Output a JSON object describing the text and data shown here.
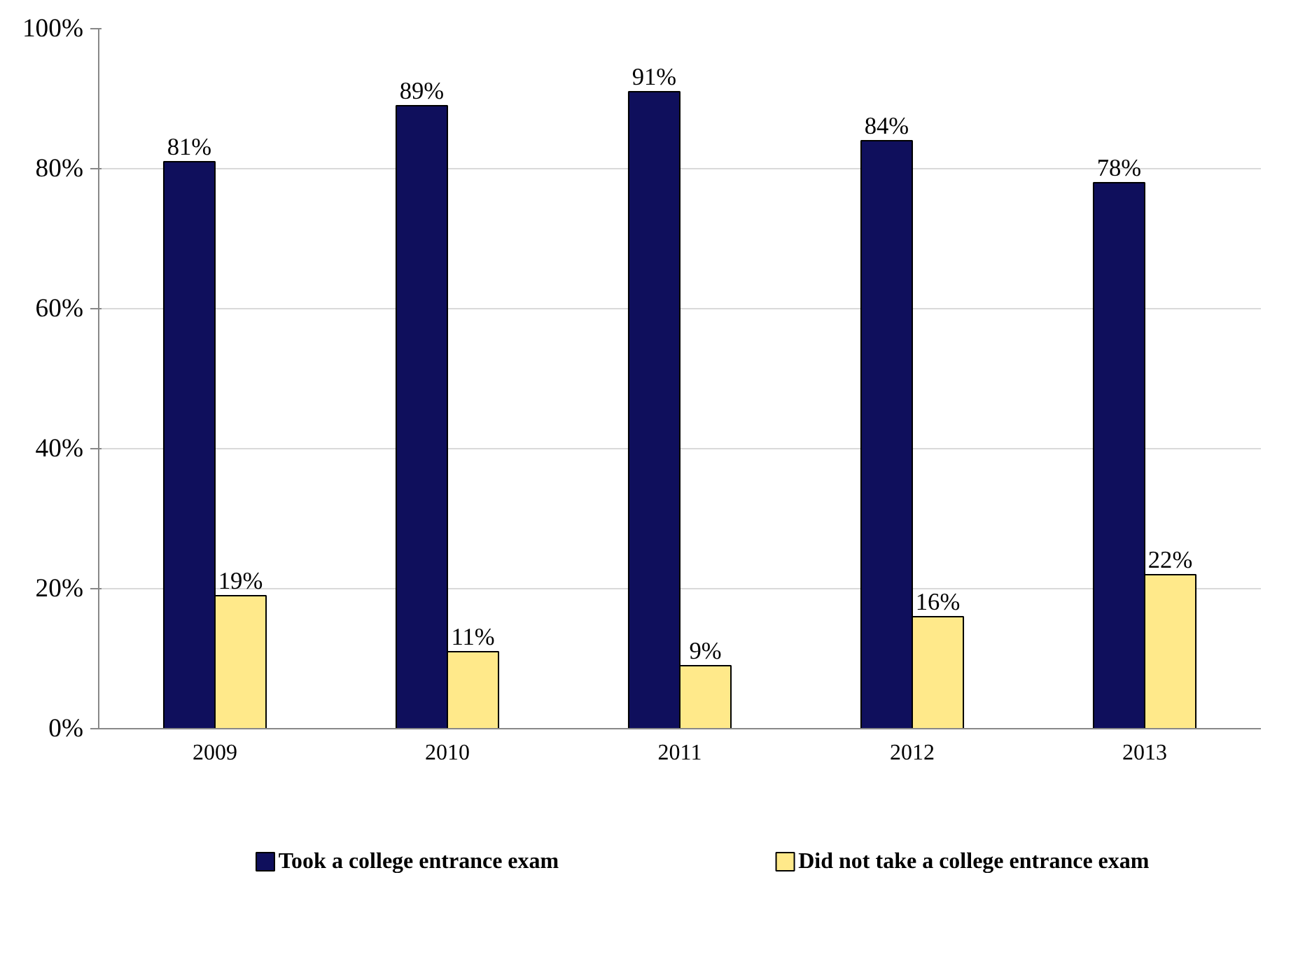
{
  "chart_data": {
    "type": "bar",
    "categories": [
      "2009",
      "2010",
      "2011",
      "2012",
      "2013"
    ],
    "series": [
      {
        "name": "Took a college entrance exam",
        "color": "#0f0f5c",
        "values": [
          81,
          89,
          91,
          84,
          78
        ],
        "value_labels": [
          "81%",
          "89%",
          "91%",
          "84%",
          "78%"
        ]
      },
      {
        "name": "Did not take a college entrance exam",
        "color": "#ffe98a",
        "values": [
          19,
          11,
          9,
          16,
          22
        ],
        "value_labels": [
          "19%",
          "11%",
          "9%",
          "16%",
          "22%"
        ]
      }
    ],
    "ylim": [
      0,
      100
    ],
    "yticks": [
      {
        "value": 0,
        "label": "0%"
      },
      {
        "value": 20,
        "label": "20%"
      },
      {
        "value": 40,
        "label": "40%"
      },
      {
        "value": 60,
        "label": "60%"
      },
      {
        "value": 80,
        "label": "80%"
      },
      {
        "value": 100,
        "label": "100%"
      }
    ],
    "grid": "y",
    "legend": "bottom"
  }
}
